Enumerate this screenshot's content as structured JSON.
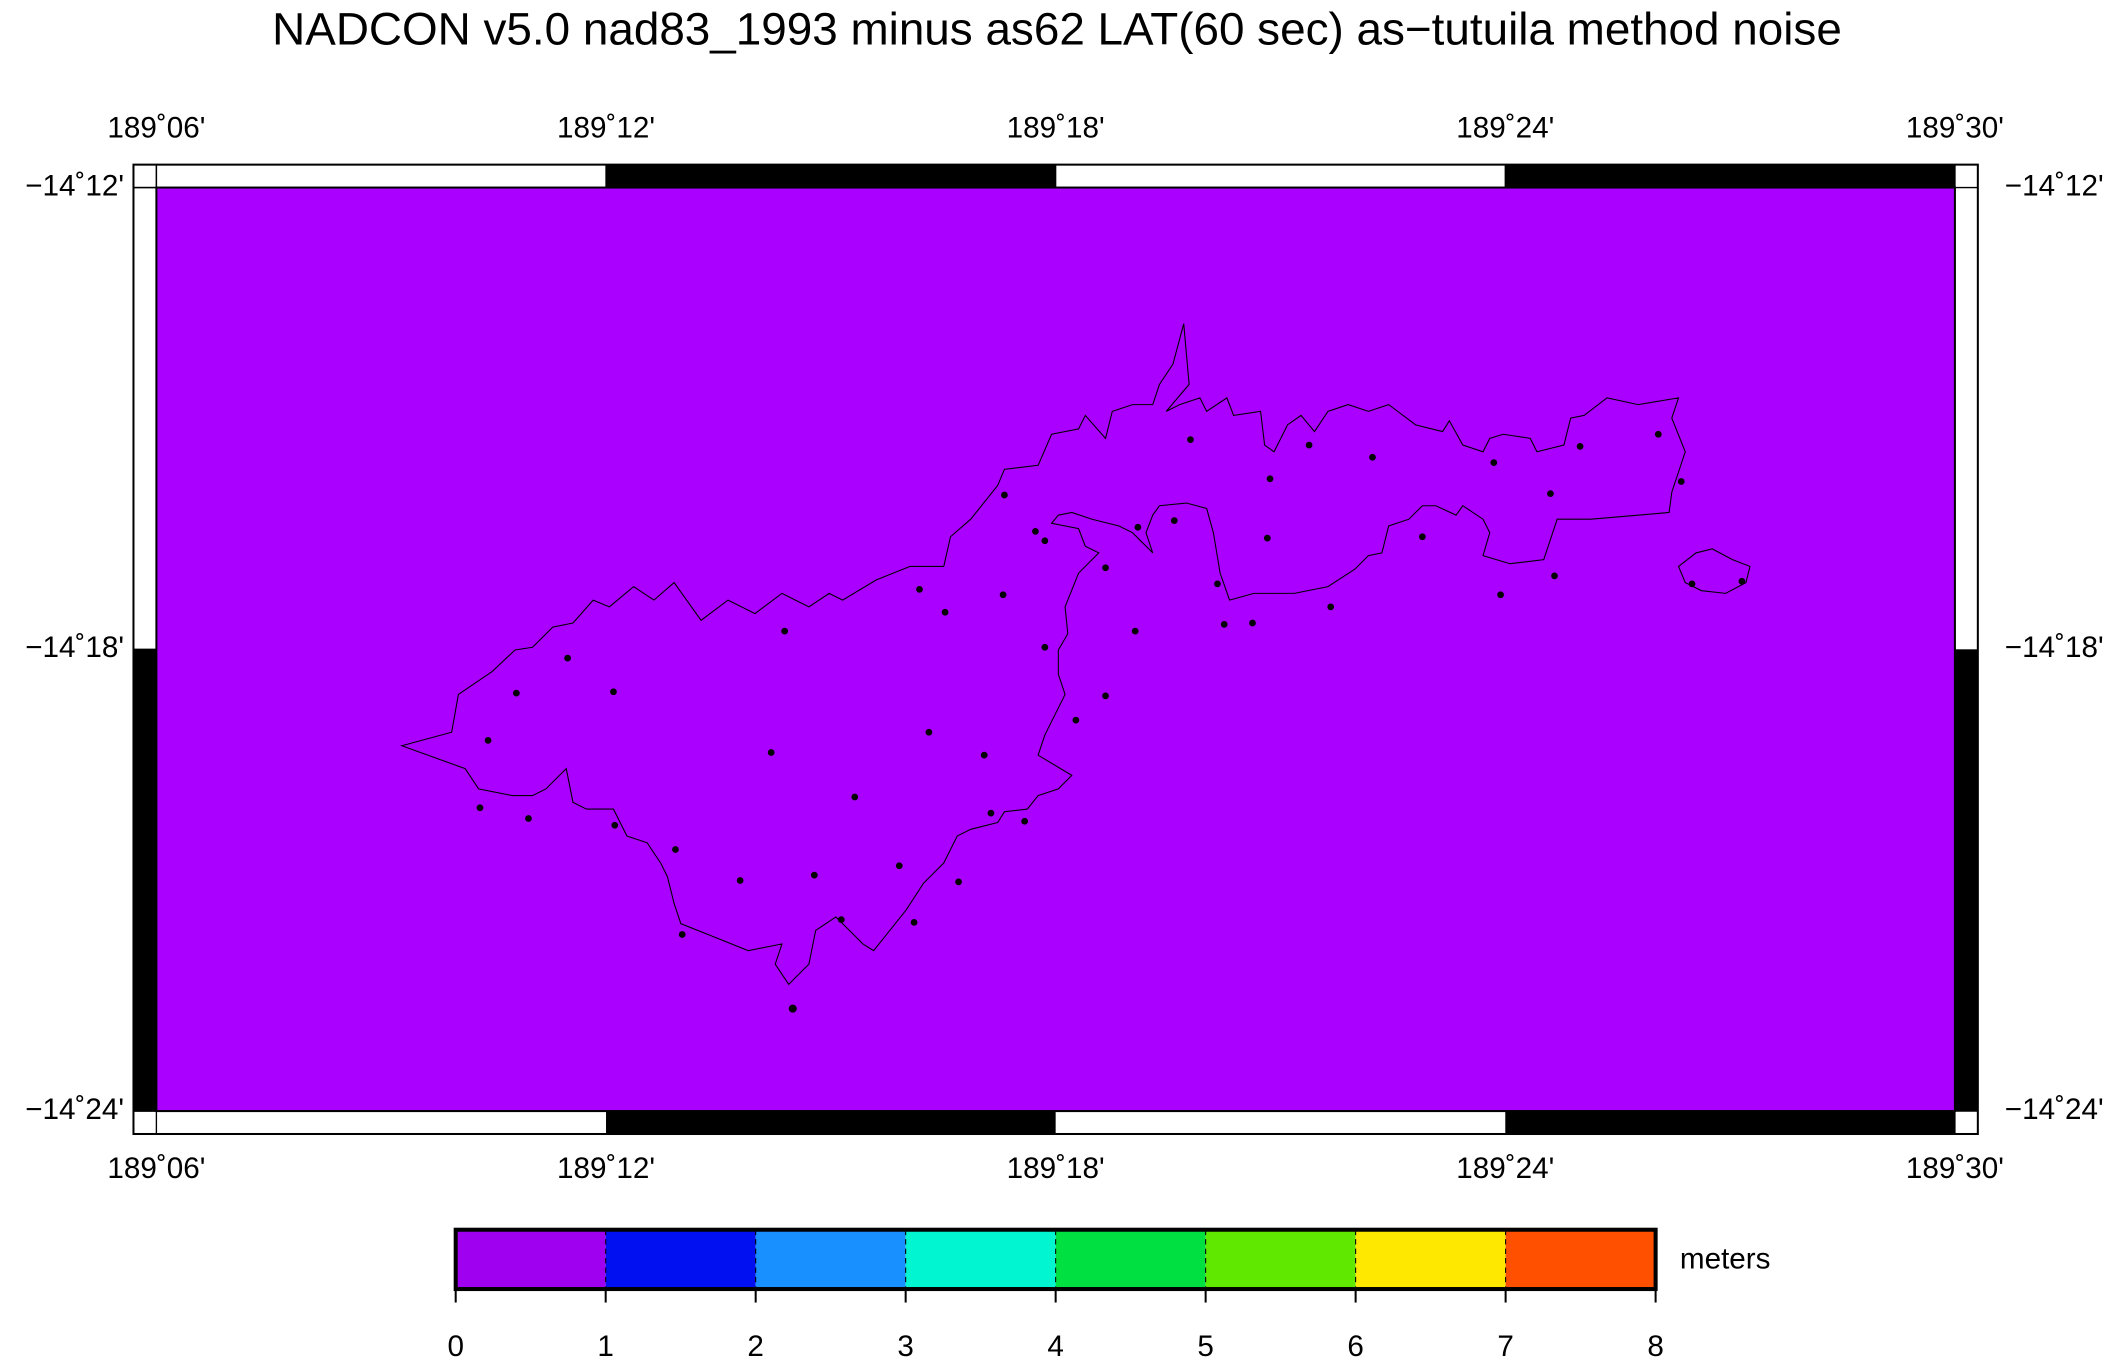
{
  "title": "NADCON v5.0 nad83_1993 minus as62 LAT(60 sec) as−tutuila method noise",
  "map": {
    "lonlim": [
      189.1,
      189.5
    ],
    "latlim": [
      -14.4,
      -14.2
    ],
    "lon_ticks": [
      {
        "value": 189.1,
        "label": "189˚06'"
      },
      {
        "value": 189.2,
        "label": "189˚12'"
      },
      {
        "value": 189.3,
        "label": "189˚18'"
      },
      {
        "value": 189.4,
        "label": "189˚24'"
      },
      {
        "value": 189.5,
        "label": "189˚30'"
      }
    ],
    "lat_ticks": [
      {
        "value": -14.2,
        "label": "−14˚12'"
      },
      {
        "value": -14.3,
        "label": "−14˚18'"
      },
      {
        "value": -14.4,
        "label": "−14˚24'"
      }
    ],
    "fill": "#aa00ff"
  },
  "colorbar": {
    "lim": [
      0,
      8
    ],
    "ticks": [
      0,
      1,
      2,
      3,
      4,
      5,
      6,
      7,
      8
    ],
    "colors": [
      "#a000f0",
      "#0010f0",
      "#1890ff",
      "#00f5d0",
      "#00e040",
      "#60e800",
      "#ffe800",
      "#ff5000"
    ],
    "unit": "meters"
  }
}
